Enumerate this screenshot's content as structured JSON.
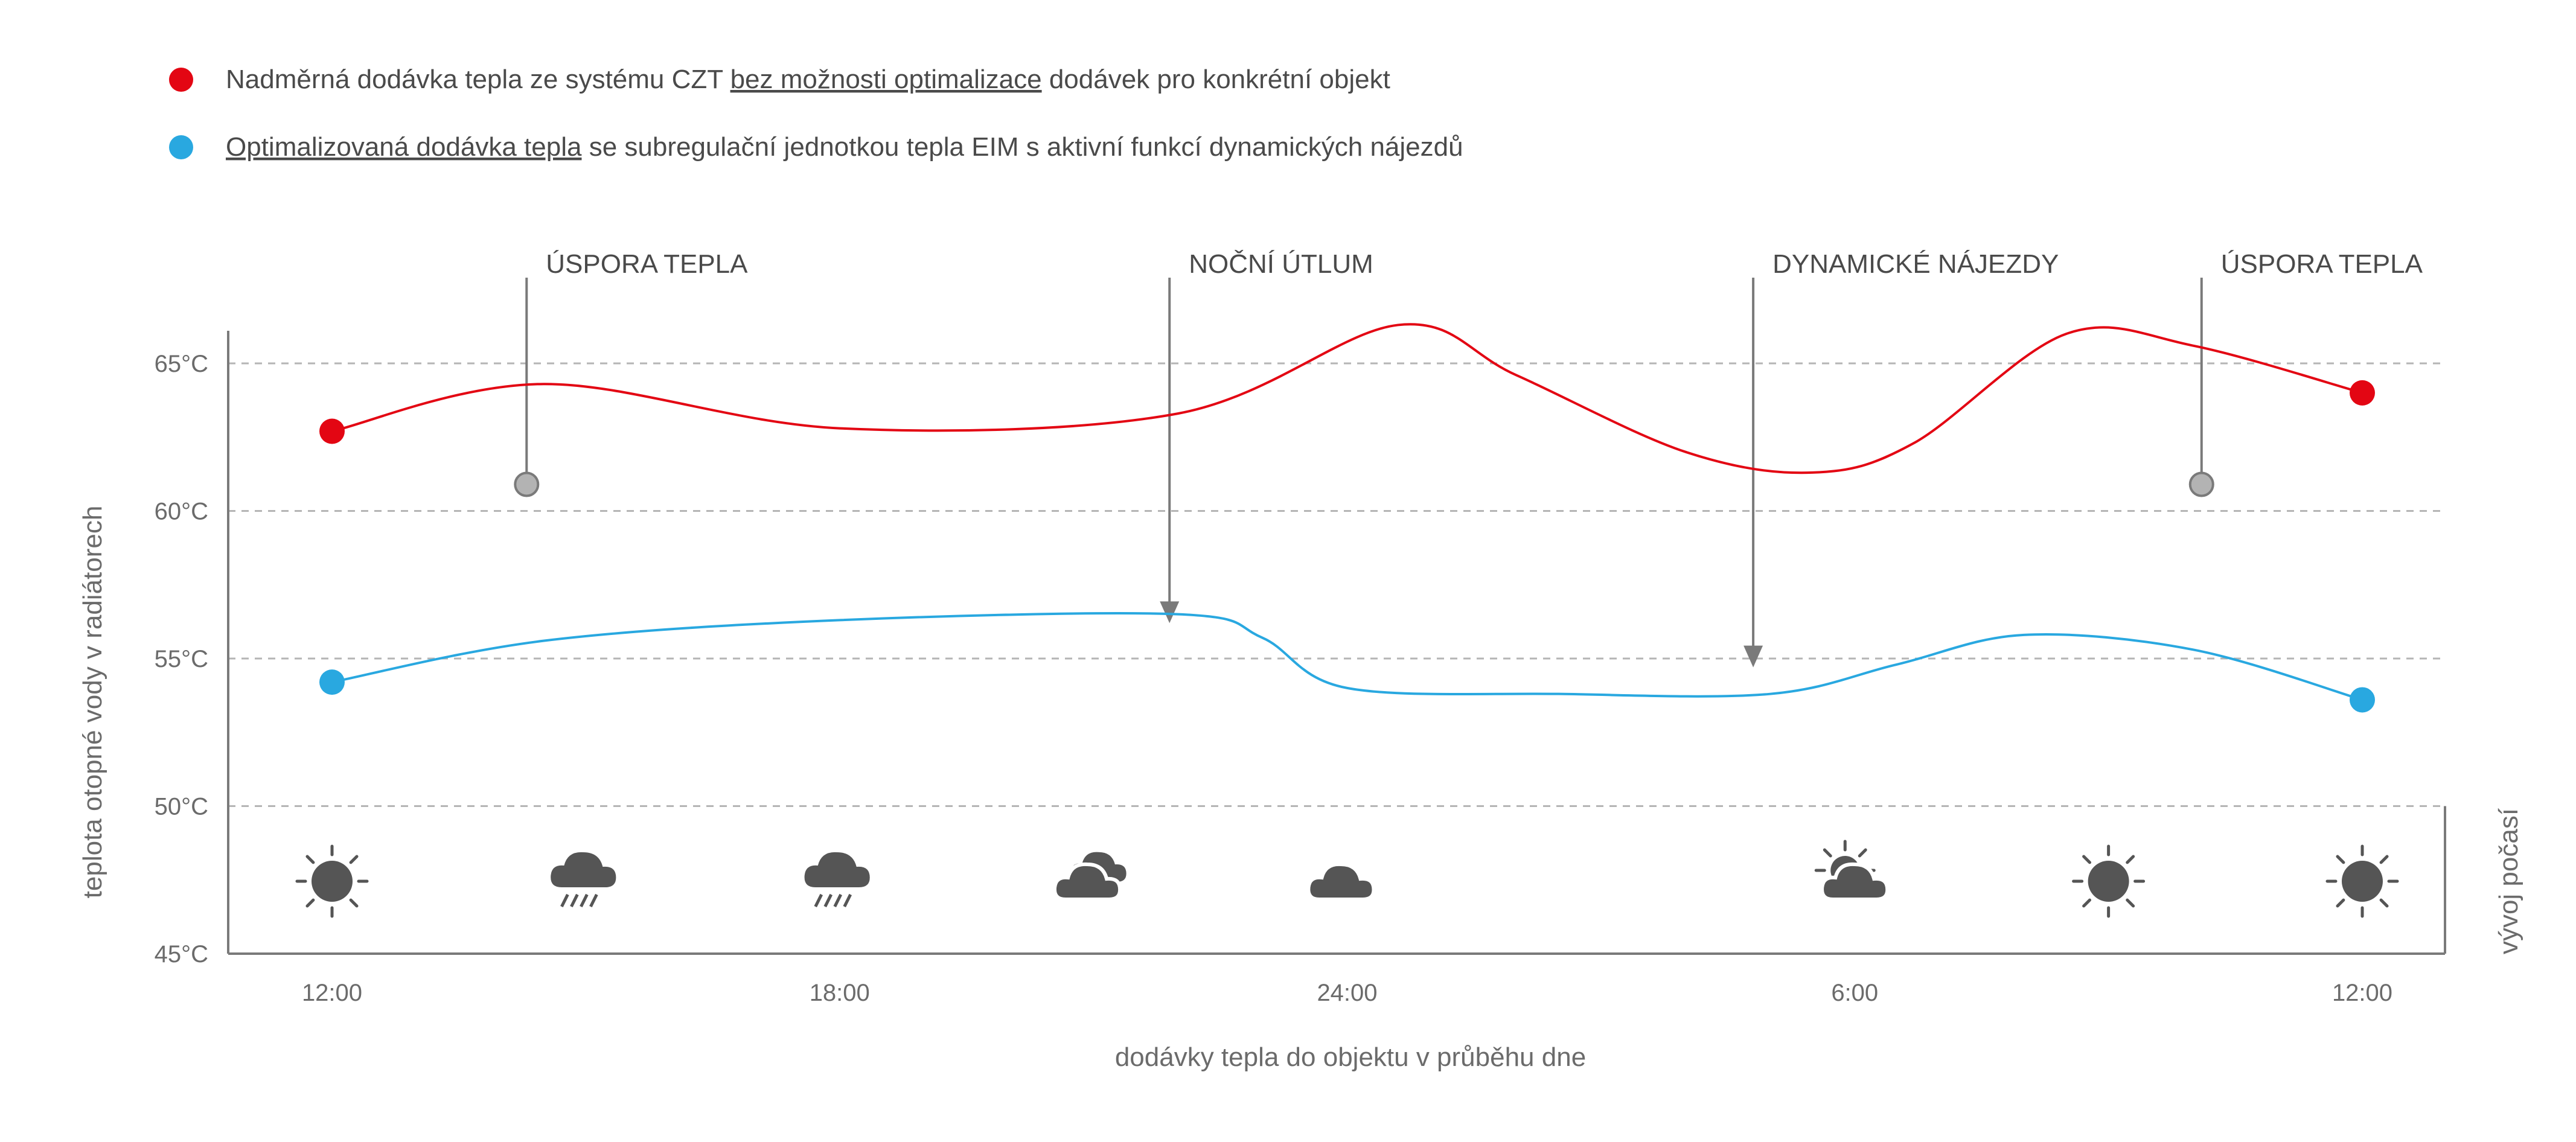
{
  "colors": {
    "red_series": "#e30613",
    "blue_series": "#29a8e0",
    "axis": "#7a7a7a",
    "grid": "#b5b5b5",
    "marker_gray": "#b3b3b3",
    "icon": "#555555",
    "text": "#4a4a4a"
  },
  "legend": {
    "red": {
      "pre": "Nadměrná dodávka tepla ze systému CZT ",
      "underlined": "bez možnosti optimalizace",
      "post": " dodávek pro konkrétní objekt"
    },
    "blue": {
      "pre": "",
      "underlined": "Optimalizovaná dodávka tepla",
      "post": " se subregulační jednotkou tepla EIM s aktivní funkcí dynamických nájezdů"
    }
  },
  "chart_data": {
    "type": "line",
    "xlabel": "dodávky tepla do objektu v průběhu dne",
    "ylabel": "teplota otopné vody v radiátorech",
    "weather_label": "vývoj počasí",
    "xlim": [
      0,
      24
    ],
    "ylim": [
      45,
      67
    ],
    "x_ticks": [
      {
        "x": 0,
        "label": "12:00"
      },
      {
        "x": 6,
        "label": "18:00"
      },
      {
        "x": 12,
        "label": "24:00"
      },
      {
        "x": 18,
        "label": "6:00"
      },
      {
        "x": 24,
        "label": "12:00"
      }
    ],
    "y_ticks": [
      {
        "y": 65,
        "label": "65°C"
      },
      {
        "y": 60,
        "label": "60°C"
      },
      {
        "y": 55,
        "label": "55°C"
      },
      {
        "y": 50,
        "label": "50°C"
      },
      {
        "y": 45,
        "label": "45°C"
      }
    ],
    "grid": "dashed horizontal at 50, 55, 60, 65",
    "series": [
      {
        "color": "#e30613",
        "points": [
          [
            0,
            62.7
          ],
          [
            2.5,
            64.3
          ],
          [
            6,
            62.8
          ],
          [
            10,
            63.3
          ],
          [
            12.6,
            66.3
          ],
          [
            14,
            64.6
          ],
          [
            16,
            62
          ],
          [
            17.5,
            61.3
          ],
          [
            18.7,
            62.3
          ],
          [
            20.5,
            66
          ],
          [
            22,
            65.6
          ],
          [
            24,
            64
          ]
        ]
      },
      {
        "color": "#29a8e0",
        "points": [
          [
            0,
            54.2
          ],
          [
            2.5,
            55.6
          ],
          [
            6,
            56.3
          ],
          [
            10,
            56.5
          ],
          [
            11,
            55.7
          ],
          [
            12,
            54
          ],
          [
            14.5,
            53.8
          ],
          [
            17,
            53.8
          ],
          [
            18.5,
            54.8
          ],
          [
            20,
            55.8
          ],
          [
            22,
            55.3
          ],
          [
            24,
            53.6
          ]
        ]
      }
    ],
    "endpoints": [
      {
        "series": 0,
        "x": 0,
        "y": 62.7
      },
      {
        "series": 0,
        "x": 24,
        "y": 64
      },
      {
        "series": 1,
        "x": 0,
        "y": 54.2
      },
      {
        "series": 1,
        "x": 24,
        "y": 53.6
      }
    ],
    "annotations": [
      {
        "label": "ÚSPORA TEPLA",
        "x": 2.3,
        "kind": "marker",
        "marker_y": 60.9
      },
      {
        "label": "NOČNÍ ÚTLUM",
        "x": 9.9,
        "kind": "arrow",
        "arrow_y": 56.2
      },
      {
        "label": "DYNAMICKÉ NÁJEZDY",
        "x": 16.8,
        "kind": "arrow",
        "arrow_y": 54.7
      },
      {
        "label": "ÚSPORA TEPLA",
        "x": 22.1,
        "kind": "marker",
        "marker_y": 60.9
      }
    ],
    "weather": [
      {
        "x": 0,
        "icon": "sun-icon"
      },
      {
        "x": 3,
        "icon": "rain-cloud-icon"
      },
      {
        "x": 6,
        "icon": "rain-cloud-icon"
      },
      {
        "x": 9,
        "icon": "clouds-icon"
      },
      {
        "x": 12,
        "icon": "cloud-moon-icon"
      },
      {
        "x": 15,
        "icon": "moon-icon"
      },
      {
        "x": 18,
        "icon": "sun-cloud-icon"
      },
      {
        "x": 21,
        "icon": "sun-icon"
      },
      {
        "x": 24,
        "icon": "sun-icon"
      }
    ]
  }
}
